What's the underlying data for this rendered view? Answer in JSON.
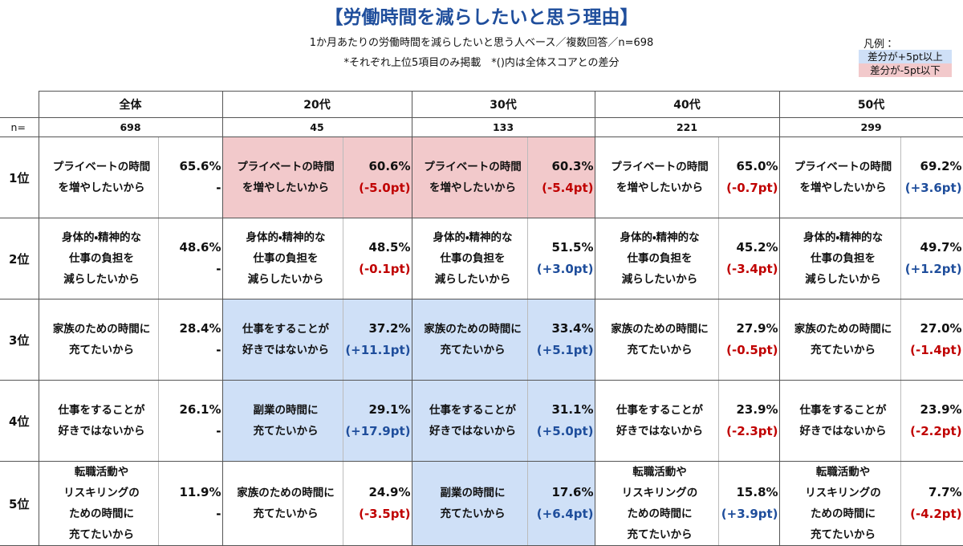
{
  "header": {
    "title": "【労働時間を減らしたいと思う理由】",
    "subtitle_lines": [
      "1か月あたりの労働時間を減らしたいと思う人ベース／複数回答／n=698",
      "*それぞれ上位5項目のみ掲載　*()内は全体スコアとの差分"
    ]
  },
  "legend": {
    "title": "凡例：",
    "items": [
      {
        "label": "差分が+5pt以上",
        "color": "#cfe0f7"
      },
      {
        "label": "差分が-5pt以下",
        "color": "#f2c9cb"
      }
    ]
  },
  "table": {
    "n_label": "n=",
    "columns": [
      {
        "header": "全体",
        "n": "698"
      },
      {
        "header": "20代",
        "n": "45"
      },
      {
        "header": "30代",
        "n": "133"
      },
      {
        "header": "40代",
        "n": "221"
      },
      {
        "header": "50代",
        "n": "299"
      }
    ],
    "rows": [
      {
        "rank": "1位",
        "cells": [
          {
            "reason": [
              "プライベートの時間",
              "を増やしたいから"
            ],
            "value": "65.6%",
            "diff": "-",
            "diff_color": "#000000"
          },
          {
            "reason": [
              "プライベートの時間",
              "を増やしたいから"
            ],
            "value": "60.6%",
            "diff": "(-5.0pt)",
            "diff_color": "#c00000",
            "bg": "#f2c9cb"
          },
          {
            "reason": [
              "プライベートの時間",
              "を増やしたいから"
            ],
            "value": "60.3%",
            "diff": "(-5.4pt)",
            "diff_color": "#c00000",
            "bg": "#f2c9cb"
          },
          {
            "reason": [
              "プライベートの時間",
              "を増やしたいから"
            ],
            "value": "65.0%",
            "diff": "(-0.7pt)",
            "diff_color": "#c00000"
          },
          {
            "reason": [
              "プライベートの時間",
              "を増やしたいから"
            ],
            "value": "69.2%",
            "diff": "(+3.6pt)",
            "diff_color": "#1f4e9c"
          }
        ]
      },
      {
        "rank": "2位",
        "cells": [
          {
            "reason": [
              "身体的・精神的な",
              "仕事の負担を",
              "減らしたいから"
            ],
            "value": "48.6%",
            "diff": "-",
            "diff_color": "#000000"
          },
          {
            "reason": [
              "身体的・精神的な",
              "仕事の負担を",
              "減らしたいから"
            ],
            "value": "48.5%",
            "diff": "(-0.1pt)",
            "diff_color": "#c00000"
          },
          {
            "reason": [
              "身体的・精神的な",
              "仕事の負担を",
              "減らしたいから"
            ],
            "value": "51.5%",
            "diff": "(+3.0pt)",
            "diff_color": "#1f4e9c"
          },
          {
            "reason": [
              "身体的・精神的な",
              "仕事の負担を",
              "減らしたいから"
            ],
            "value": "45.2%",
            "diff": "(-3.4pt)",
            "diff_color": "#c00000"
          },
          {
            "reason": [
              "身体的・精神的な",
              "仕事の負担を",
              "減らしたいから"
            ],
            "value": "49.7%",
            "diff": "(+1.2pt)",
            "diff_color": "#1f4e9c"
          }
        ]
      },
      {
        "rank": "3位",
        "cells": [
          {
            "reason": [
              "家族のための時間に",
              "充てたいから"
            ],
            "value": "28.4%",
            "diff": "-",
            "diff_color": "#000000"
          },
          {
            "reason": [
              "仕事をすることが",
              "好きではないから"
            ],
            "value": "37.2%",
            "diff": "(+11.1pt)",
            "diff_color": "#1f4e9c",
            "bg": "#cfe0f7"
          },
          {
            "reason": [
              "家族のための時間に",
              "充てたいから"
            ],
            "value": "33.4%",
            "diff": "(+5.1pt)",
            "diff_color": "#1f4e9c",
            "bg": "#cfe0f7"
          },
          {
            "reason": [
              "家族のための時間に",
              "充てたいから"
            ],
            "value": "27.9%",
            "diff": "(-0.5pt)",
            "diff_color": "#c00000"
          },
          {
            "reason": [
              "家族のための時間に",
              "充てたいから"
            ],
            "value": "27.0%",
            "diff": "(-1.4pt)",
            "diff_color": "#c00000"
          }
        ]
      },
      {
        "rank": "4位",
        "cells": [
          {
            "reason": [
              "仕事をすることが",
              "好きではないから"
            ],
            "value": "26.1%",
            "diff": "-",
            "diff_color": "#000000"
          },
          {
            "reason": [
              "副業の時間に",
              "充てたいから"
            ],
            "value": "29.1%",
            "diff": "(+17.9pt)",
            "diff_color": "#1f4e9c",
            "bg": "#cfe0f7"
          },
          {
            "reason": [
              "仕事をすることが",
              "好きではないから"
            ],
            "value": "31.1%",
            "diff": "(+5.0pt)",
            "diff_color": "#1f4e9c",
            "bg": "#cfe0f7"
          },
          {
            "reason": [
              "仕事をすることが",
              "好きではないから"
            ],
            "value": "23.9%",
            "diff": "(-2.3pt)",
            "diff_color": "#c00000"
          },
          {
            "reason": [
              "仕事をすることが",
              "好きではないから"
            ],
            "value": "23.9%",
            "diff": "(-2.2pt)",
            "diff_color": "#c00000"
          }
        ]
      },
      {
        "rank": "5位",
        "cells": [
          {
            "reason": [
              "転職活動や",
              "リスキリングの",
              "ための時間に",
              "充てたいから"
            ],
            "value": "11.9%",
            "diff": "-",
            "diff_color": "#000000"
          },
          {
            "reason": [
              "家族のための時間に",
              "充てたいから"
            ],
            "value": "24.9%",
            "diff": "(-3.5pt)",
            "diff_color": "#c00000"
          },
          {
            "reason": [
              "副業の時間に",
              "充てたいから"
            ],
            "value": "17.6%",
            "diff": "(+6.4pt)",
            "diff_color": "#1f4e9c",
            "bg": "#cfe0f7"
          },
          {
            "reason": [
              "転職活動や",
              "リスキリングの",
              "ための時間に",
              "充てたいから"
            ],
            "value": "15.8%",
            "diff": "(+3.9pt)",
            "diff_color": "#1f4e9c"
          },
          {
            "reason": [
              "転職活動や",
              "リスキリングの",
              "ための時間に",
              "充てたいから"
            ],
            "value": "7.7%",
            "diff": "(-4.2pt)",
            "diff_color": "#c00000"
          }
        ]
      }
    ]
  }
}
